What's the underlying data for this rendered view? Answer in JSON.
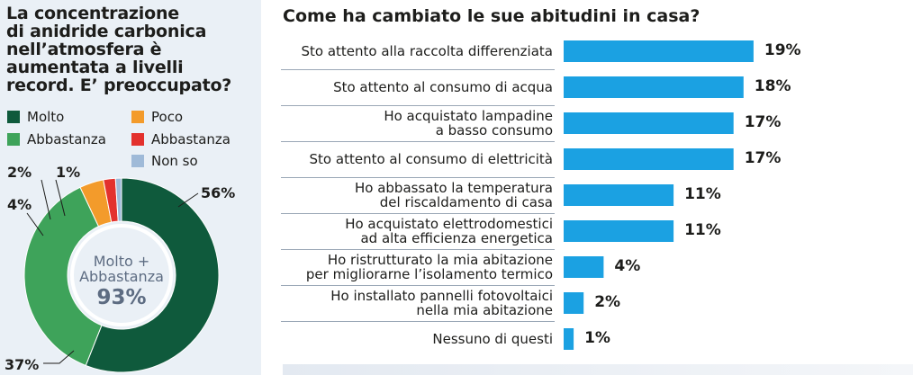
{
  "left": {
    "question": "La concentrazione\ndi anidride carbonica\nnell’atmosfera è\naumentata a livelli\nrecord. E’ preoccupato?",
    "legend": [
      {
        "label": "Molto",
        "color": "#0f5a3c"
      },
      {
        "label": "Poco",
        "color": "#f39b2b"
      },
      {
        "label": "Abbastanza",
        "color": "#3ea35a"
      },
      {
        "label": "Abbastanza",
        "color": "#e3312d"
      },
      {
        "label": "Non so",
        "color": "#9fbad8"
      }
    ],
    "center": {
      "line1": "Molto +",
      "line2": "Abbastanza",
      "value": "93%"
    }
  },
  "right": {
    "title": "Come ha cambiato le sue abitudini in casa?"
  },
  "chart_data": [
    {
      "type": "pie",
      "categories": [
        "Molto",
        "Abbastanza",
        "Poco",
        "Abbastanza",
        "Non so"
      ],
      "values": [
        56,
        37,
        4,
        2,
        1
      ],
      "labels": [
        "56%",
        "37%",
        "4%",
        "2%",
        "1%"
      ],
      "colors": [
        "#0f5a3c",
        "#3ea35a",
        "#f39b2b",
        "#e3312d",
        "#9fbad8"
      ],
      "title": "La concentrazione di anidride carbonica nell’atmosfera è aumentata a livelli record. E’ preoccupato?"
    },
    {
      "type": "bar",
      "orientation": "horizontal",
      "title": "Come ha cambiato le sue abitudini in casa?",
      "categories": [
        "Sto attento alla raccolta differenziata",
        "Sto attento al consumo di acqua",
        "Ho acquistato lampadine\na basso consumo",
        "Sto attento al consumo di elettricità",
        "Ho abbassato la temperatura\ndel riscaldamento di casa",
        "Ho acquistato elettrodomestici\nad alta efficienza energetica",
        "Ho ristrutturato la mia abitazione\nper migliorarne l’isolamento termico",
        "Ho installato pannelli fotovoltaici\nnella mia abitazione",
        "Nessuno di questi"
      ],
      "values": [
        19,
        18,
        17,
        17,
        11,
        11,
        4,
        2,
        1
      ],
      "labels": [
        "19%",
        "18%",
        "17%",
        "17%",
        "11%",
        "11%",
        "4%",
        "2%",
        "1%"
      ],
      "color": "#1ba1e2"
    }
  ]
}
